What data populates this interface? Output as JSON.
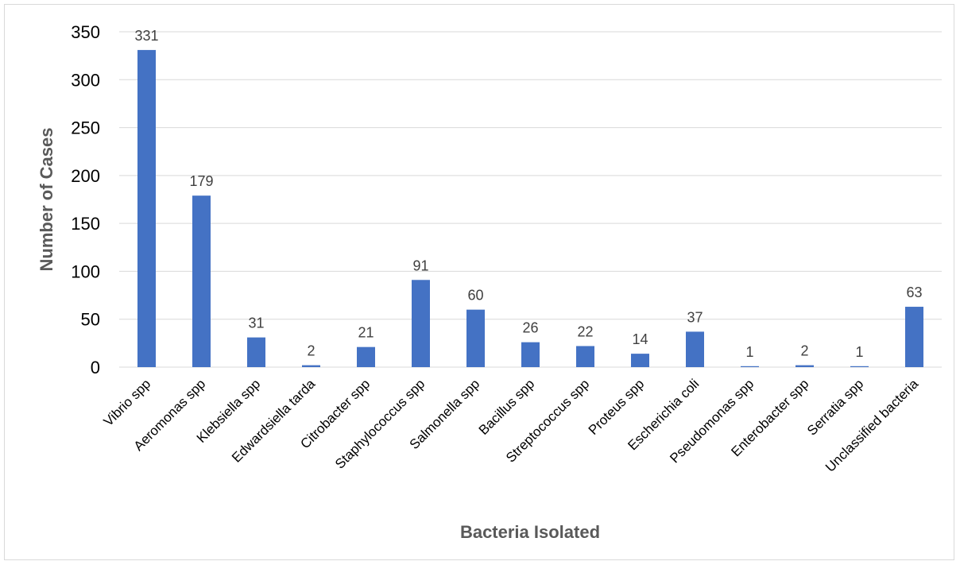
{
  "chart_data": {
    "type": "bar",
    "title": "",
    "xlabel": "Bacteria Isolated",
    "ylabel": "Number of Cases",
    "ylim": [
      0,
      350
    ],
    "yticks": [
      0,
      50,
      100,
      150,
      200,
      250,
      300,
      350
    ],
    "grid": true,
    "legend": "none",
    "bar_color": "#4472c4",
    "categories": [
      "Vibrio spp",
      "Aeromonas spp",
      "Klebsiella spp",
      "Edwardsiella tarda",
      "Citrobacter spp",
      "Staphylococcus spp",
      "Salmonella spp",
      "Bacillus spp",
      "Streptococcus spp",
      "Proteus spp",
      "Escherichia coli",
      "Pseudomonas spp",
      "Enterobacter spp",
      "Serratia spp",
      "Unclassified bacteria"
    ],
    "values": [
      331,
      179,
      31,
      2,
      21,
      91,
      60,
      26,
      22,
      14,
      37,
      1,
      2,
      1,
      63
    ],
    "data_labels": [
      "331",
      "179",
      "31",
      "2",
      "21",
      "91",
      "60",
      "26",
      "22",
      "14",
      "37",
      "1",
      "2",
      "1",
      "63"
    ]
  }
}
